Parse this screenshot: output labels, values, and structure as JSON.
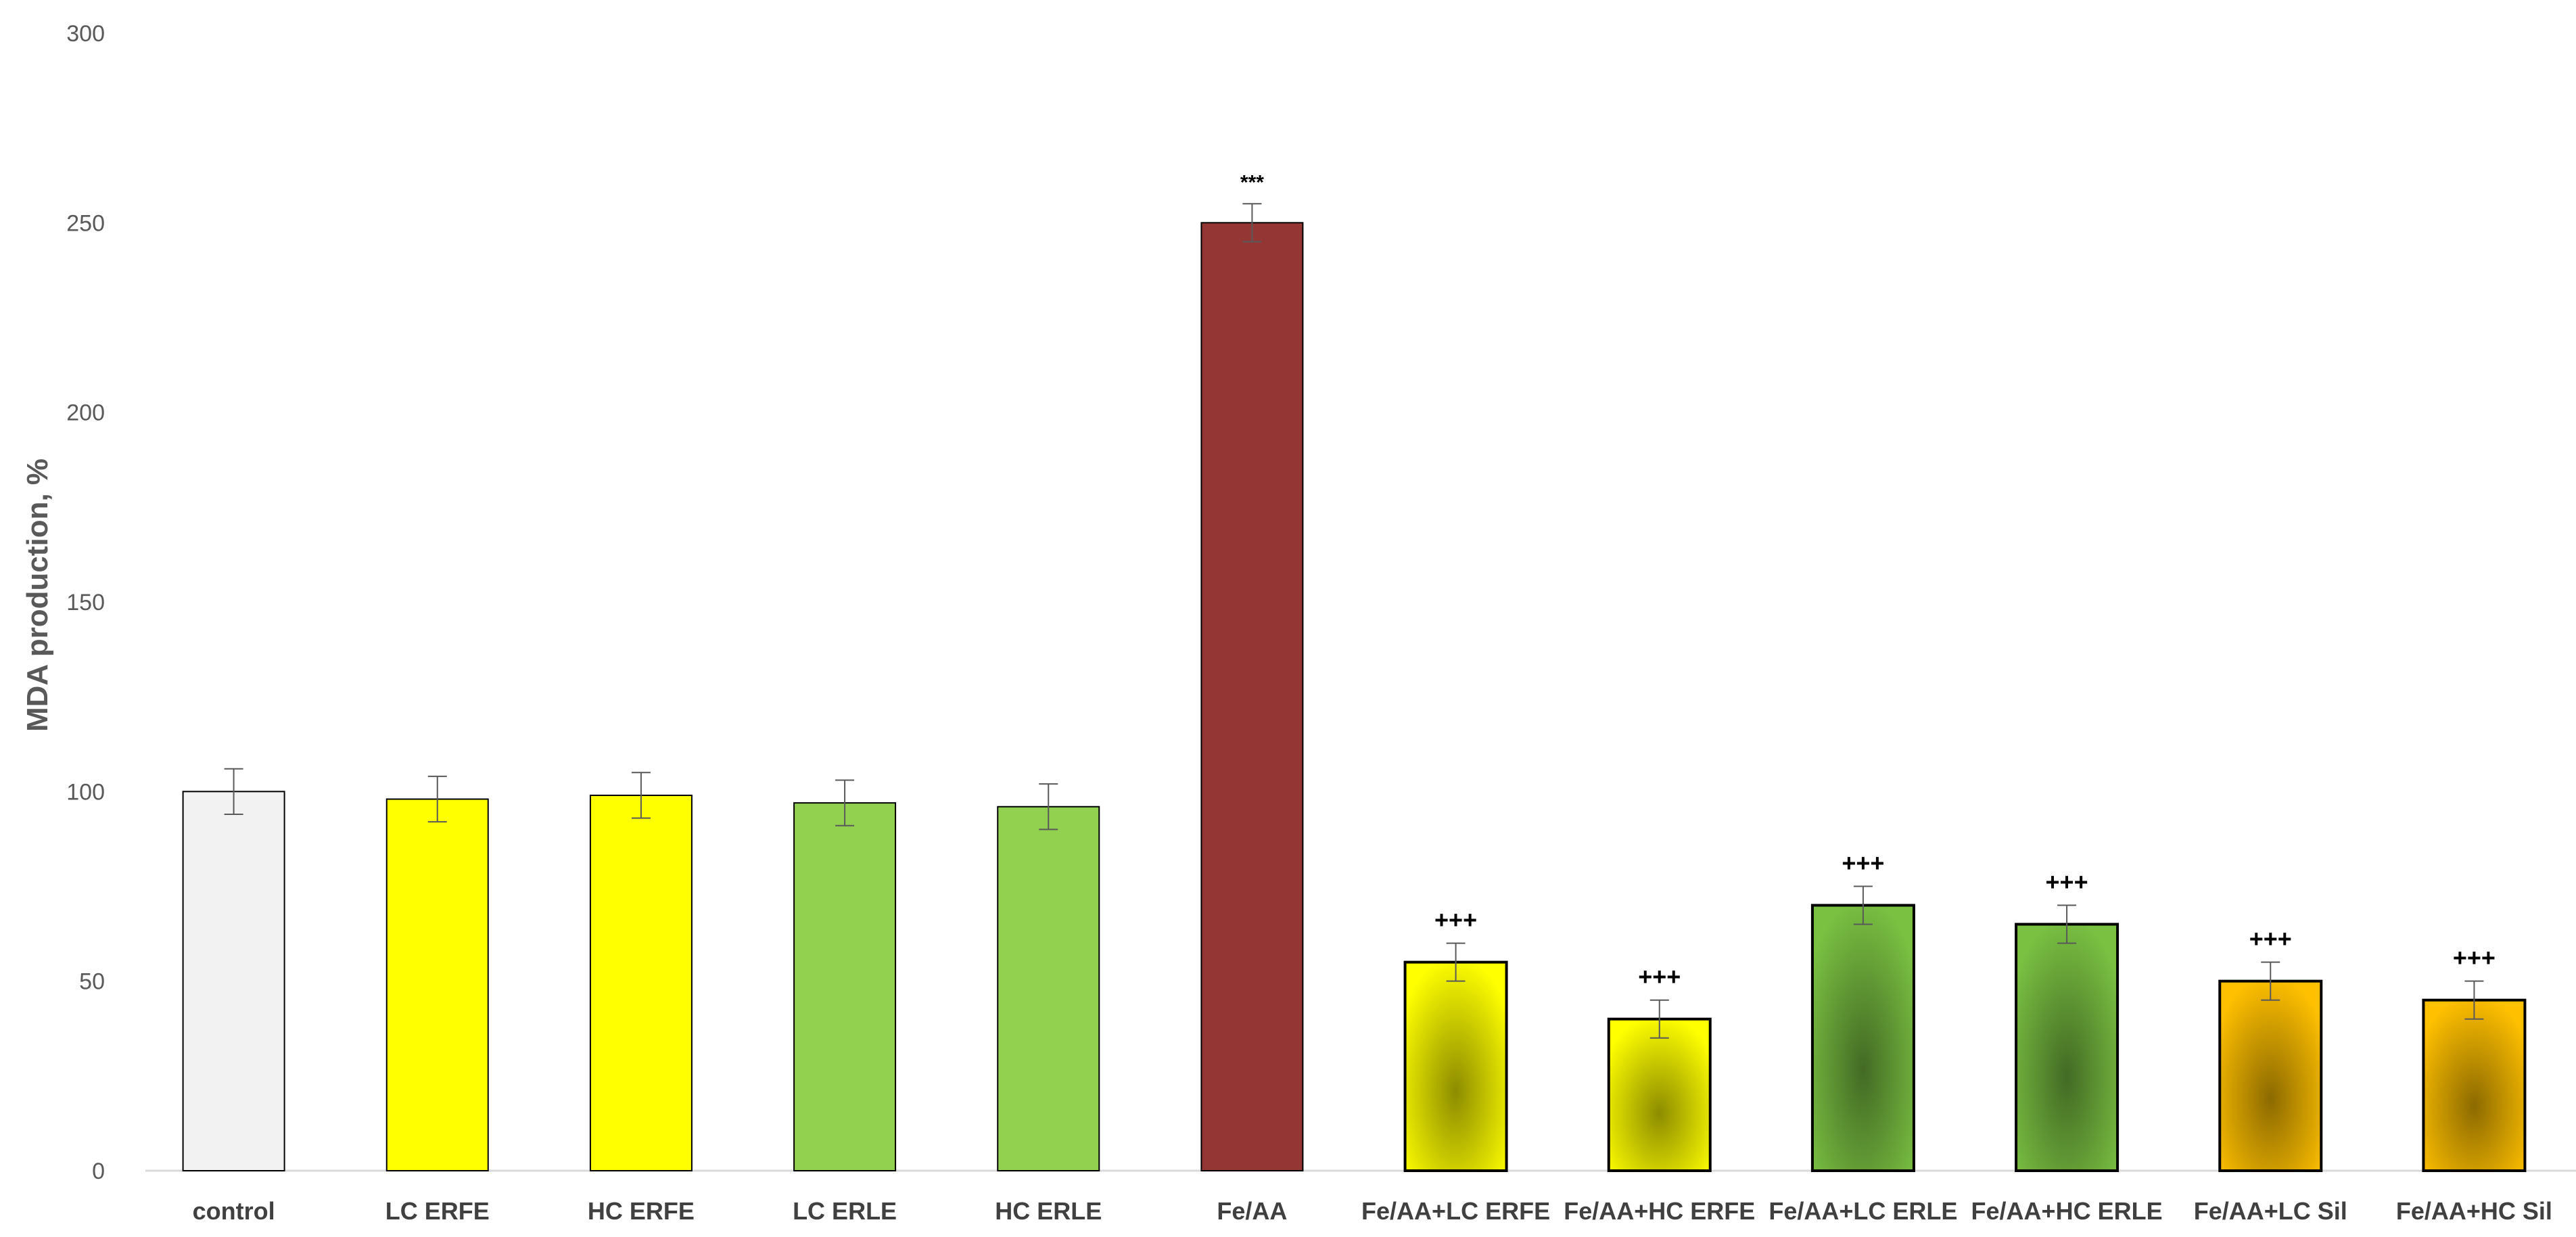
{
  "chart_data": {
    "type": "bar",
    "title": "",
    "xlabel": "",
    "ylabel": "MDA production,  %",
    "ylim": [
      0,
      300
    ],
    "yticks": [
      0,
      50,
      100,
      150,
      200,
      250,
      300
    ],
    "grid": false,
    "legend": "none",
    "categories": [
      "control",
      "LC ERFE",
      "HC ERFE",
      "LC ERLE",
      "HC ERLE",
      "Fe/AA",
      "Fe/AA+LC ERFE",
      "Fe/AA+HC ERFE",
      "Fe/AA+LC ERLE",
      "Fe/AA+HC ERLE",
      "Fe/AA+LC Sil",
      "Fe/AA+HC Sil"
    ],
    "values": [
      100,
      98,
      99,
      97,
      96,
      250,
      55,
      40,
      70,
      65,
      50,
      45
    ],
    "errors": [
      6,
      6,
      6,
      6,
      6,
      5,
      5,
      5,
      5,
      5,
      5,
      5
    ],
    "annotations": [
      "",
      "",
      "",
      "",
      "",
      "***",
      "+++",
      "+++",
      "+++",
      "+++",
      "+++",
      "+++"
    ],
    "colors": [
      "#f2f2f2",
      "#ffff00",
      "#ffff00",
      "#92d050",
      "#92d050",
      "#943634",
      "#ffff00",
      "#ffff00",
      "#7ac142",
      "#7ac142",
      "#ffc000",
      "#ffc000"
    ],
    "gradient": [
      false,
      false,
      false,
      false,
      false,
      false,
      true,
      true,
      true,
      true,
      true,
      true
    ]
  }
}
